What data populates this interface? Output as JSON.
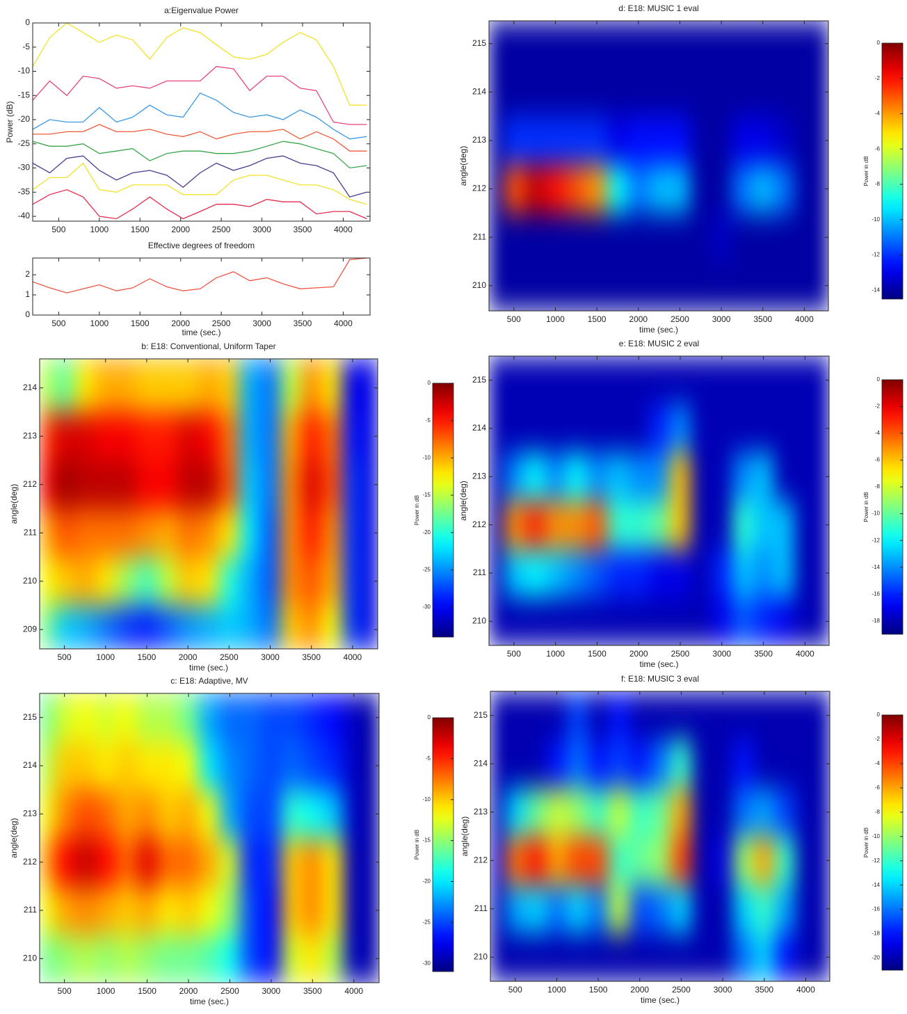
{
  "chart_data": [
    {
      "type": "line",
      "title": "a:Eigenvalue Power",
      "ylabel": "Power (dB)",
      "x": [
        180,
        390,
        600,
        800,
        1000,
        1210,
        1410,
        1620,
        1830,
        2030,
        2240,
        2440,
        2650,
        2850,
        3060,
        3260,
        3470,
        3670,
        3880,
        4080,
        4290
      ],
      "xlim": [
        180,
        4330
      ],
      "ylim": [
        -41,
        0
      ],
      "xticks": [
        500,
        1000,
        1500,
        2000,
        2500,
        3000,
        3500,
        4000
      ],
      "yticks": [
        0,
        -5,
        -10,
        -15,
        -20,
        -25,
        -30,
        -35,
        -40
      ],
      "series": [
        {
          "color": "#f2e22a",
          "values": [
            -9,
            -3,
            0,
            -2,
            -4,
            -2.5,
            -3.5,
            -7.5,
            -3,
            -1,
            -2,
            -4.5,
            -7,
            -7.5,
            -6.5,
            -4,
            -2,
            -3.5,
            -9,
            -17,
            -17
          ]
        },
        {
          "color": "#e8457a",
          "values": [
            -16,
            -12,
            -15,
            -11,
            -11.5,
            -13.5,
            -13,
            -13.5,
            -12,
            -12,
            -12,
            -9,
            -9.5,
            -14,
            -11,
            -11,
            -13.5,
            -14,
            -20.5,
            -21,
            -21
          ]
        },
        {
          "color": "#3a98e6",
          "values": [
            -22,
            -20,
            -20.5,
            -20.5,
            -17.5,
            -20.5,
            -19.5,
            -17,
            -19,
            -19.5,
            -14.5,
            -16,
            -18.5,
            -19.5,
            -19,
            -20,
            -18,
            -19.5,
            -22,
            -24,
            -23.5
          ]
        },
        {
          "color": "#f05a3a",
          "values": [
            -23,
            -23,
            -22.5,
            -22.5,
            -21,
            -22.5,
            -22.5,
            -22,
            -23,
            -23.5,
            -22.5,
            -24,
            -23,
            -22.5,
            -22.5,
            -22,
            -24,
            -22.5,
            -24,
            -26.5,
            -26.5
          ]
        },
        {
          "color": "#3aa64a",
          "values": [
            -24.5,
            -25.5,
            -25.5,
            -25,
            -27,
            -26.5,
            -26,
            -28.5,
            -27,
            -26.5,
            -26.5,
            -27,
            -27,
            -26.5,
            -25.5,
            -24.5,
            -25,
            -26,
            -27,
            -30,
            -29.5
          ]
        },
        {
          "color": "#4a3a90",
          "values": [
            -29,
            -31,
            -28,
            -27.5,
            -30.5,
            -32.5,
            -31,
            -30.5,
            -31.5,
            -34,
            -31,
            -29,
            -30.5,
            -29.5,
            -28,
            -27.5,
            -29,
            -29.5,
            -31,
            -36,
            -35
          ]
        },
        {
          "color": "#f2e22a",
          "values": [
            -34.5,
            -32,
            -32,
            -29,
            -34.5,
            -35,
            -33.5,
            -33.5,
            -33.5,
            -35.5,
            -35.5,
            -35.5,
            -32.5,
            -31.5,
            -31.5,
            -32.5,
            -33.5,
            -33.5,
            -34.5,
            -36.5,
            -37.5
          ]
        },
        {
          "color": "#e82a4a",
          "values": [
            -37.5,
            -35.5,
            -34.5,
            -36,
            -40,
            -40.5,
            -38.5,
            -36,
            -38.5,
            -40.5,
            -39,
            -37.5,
            -37.5,
            -38,
            -36.5,
            -37,
            -37,
            -39.5,
            -39,
            -39,
            -40.5
          ]
        }
      ]
    },
    {
      "type": "line",
      "title": "Effective degrees of freedom",
      "xlabel": "time (sec.)",
      "x": [
        180,
        390,
        600,
        800,
        1000,
        1210,
        1410,
        1620,
        1830,
        2030,
        2240,
        2440,
        2650,
        2850,
        3060,
        3260,
        3470,
        3670,
        3880,
        4080,
        4290
      ],
      "xlim": [
        180,
        4330
      ],
      "ylim": [
        0,
        2.83
      ],
      "xticks": [
        500,
        1000,
        1500,
        2000,
        2500,
        3000,
        3500,
        4000
      ],
      "yticks": [
        0,
        1,
        2
      ],
      "series": [
        {
          "color": "#ee5544",
          "values": [
            1.65,
            1.35,
            1.1,
            1.3,
            1.5,
            1.2,
            1.35,
            1.8,
            1.4,
            1.2,
            1.3,
            1.85,
            2.15,
            1.7,
            1.85,
            1.55,
            1.3,
            1.35,
            1.4,
            2.75,
            2.83
          ]
        }
      ]
    },
    {
      "type": "heatmap",
      "title": "b: E18: Conventional, Uniform Taper",
      "xlabel": "time (sec.)",
      "ylabel": "angle(deg)",
      "zlabel": "Power in dB",
      "colormap": "jet",
      "x": [
        250,
        500,
        750,
        1000,
        1250,
        1500,
        1750,
        2000,
        2250,
        2500,
        2750,
        3000,
        3250,
        3500,
        3750,
        4000,
        4250
      ],
      "y": [
        209,
        210,
        211,
        212,
        213,
        214
      ],
      "z": [
        [
          -17,
          -23,
          -24,
          -26,
          -28,
          -29,
          -27,
          -25,
          -24,
          -23,
          -24,
          -26,
          -11,
          -9,
          -13,
          -28,
          -31
        ],
        [
          -13,
          -11,
          -10,
          -12,
          -16,
          -19,
          -15,
          -11,
          -12,
          -20,
          -24,
          -27,
          -9,
          -7,
          -10,
          -28,
          -31
        ],
        [
          -10,
          -7,
          -8,
          -8,
          -8,
          -9,
          -10,
          -8,
          -9,
          -12,
          -22,
          -27,
          -9,
          -5,
          -9,
          -28,
          -31
        ],
        [
          -4,
          -1,
          -2,
          -2,
          -2,
          -4,
          -4,
          -2,
          -2,
          -7,
          -23,
          -26,
          -9,
          -3,
          -7,
          -28,
          -31
        ],
        [
          -6,
          -3,
          -3,
          -4,
          -4,
          -5,
          -5,
          -3,
          -4,
          -8,
          -24,
          -26,
          -10,
          -5,
          -8,
          -29,
          -31
        ],
        [
          -15,
          -18,
          -12,
          -10,
          -10,
          -11,
          -11,
          -11,
          -10,
          -11,
          -24,
          -26,
          -15,
          -9,
          -12,
          -30,
          -31
        ]
      ],
      "xlim": [
        200,
        4305
      ],
      "ylim": [
        208.6,
        214.6
      ],
      "xticks": [
        500,
        1000,
        1500,
        2000,
        2500,
        3000,
        3500,
        4000
      ],
      "yticks": [
        209,
        210,
        211,
        212,
        213,
        214
      ],
      "zlim": [
        -34,
        0
      ],
      "zticks": [
        0,
        -5,
        -10,
        -15,
        -20,
        -25,
        -30
      ]
    },
    {
      "type": "heatmap",
      "title": "c: E18: Adaptive, MV",
      "xlabel": "time (sec.)",
      "ylabel": "angle(deg)",
      "zlabel": "Power in dB",
      "colormap": "jet",
      "x": [
        250,
        500,
        750,
        1000,
        1250,
        1500,
        1750,
        2000,
        2250,
        2500,
        2750,
        3000,
        3250,
        3500,
        3750,
        4000,
        4250
      ],
      "y": [
        210,
        211,
        212,
        213,
        214,
        215
      ],
      "z": [
        [
          -16,
          -15,
          -14,
          -15,
          -14,
          -15,
          -16,
          -16,
          -17,
          -19,
          -25,
          -27,
          -13,
          -11,
          -14,
          -29,
          -30
        ],
        [
          -12,
          -9,
          -8,
          -9,
          -10,
          -9,
          -11,
          -10,
          -12,
          -15,
          -25,
          -27,
          -10,
          -8,
          -11,
          -29,
          -30
        ],
        [
          -9,
          -4,
          -2,
          -4,
          -7,
          -3,
          -7,
          -7,
          -9,
          -13,
          -26,
          -26,
          -10,
          -8,
          -11,
          -29,
          -30
        ],
        [
          -12,
          -8,
          -6,
          -7,
          -9,
          -8,
          -10,
          -9,
          -12,
          -22,
          -25,
          -25,
          -18,
          -19,
          -21,
          -29,
          -30
        ],
        [
          -14,
          -10,
          -10,
          -11,
          -10,
          -11,
          -11,
          -12,
          -20,
          -23,
          -24,
          -25,
          -24,
          -25,
          -26,
          -29,
          -30
        ],
        [
          -16,
          -13,
          -12,
          -13,
          -12,
          -14,
          -14,
          -16,
          -22,
          -24,
          -24,
          -25,
          -25,
          -26,
          -27,
          -29,
          -30
        ]
      ],
      "xlim": [
        200,
        4305
      ],
      "ylim": [
        209.5,
        215.5
      ],
      "xticks": [
        500,
        1000,
        1500,
        2000,
        2500,
        3000,
        3500,
        4000
      ],
      "yticks": [
        210,
        211,
        212,
        213,
        214,
        215
      ],
      "zlim": [
        -31,
        0
      ],
      "zticks": [
        0,
        -5,
        -10,
        -15,
        -20,
        -25,
        -30
      ]
    },
    {
      "type": "heatmap",
      "title": "d: E18: MUSIC 1 eval",
      "xlabel": "time (sec.)",
      "ylabel": "angle(deg)",
      "zlabel": "Power in dB",
      "colormap": "jet",
      "x": [
        250,
        500,
        750,
        1000,
        1250,
        1500,
        1750,
        2000,
        2250,
        2500,
        2750,
        3000,
        3250,
        3500,
        3750,
        4000,
        4250
      ],
      "y": [
        210,
        211,
        212,
        213,
        214,
        215
      ],
      "z": [
        [
          -14,
          -14,
          -14,
          -14,
          -14,
          -14,
          -14,
          -14,
          -14,
          -14,
          -14,
          -14,
          -14,
          -14,
          -14,
          -14,
          -14
        ],
        [
          -14,
          -14,
          -14,
          -14,
          -14,
          -14,
          -14,
          -14,
          -14,
          -14,
          -14,
          -13.5,
          -14,
          -14,
          -14,
          -14,
          -14
        ],
        [
          -14,
          -3,
          -1,
          -2,
          -3,
          -4,
          -9,
          -11,
          -10,
          -10,
          -14,
          -14,
          -11,
          -10,
          -11,
          -14,
          -14
        ],
        [
          -14,
          -12,
          -12,
          -12,
          -12,
          -12,
          -13,
          -12.5,
          -12.5,
          -12.5,
          -14,
          -14,
          -13,
          -13,
          -13.5,
          -14,
          -14
        ],
        [
          -14,
          -14,
          -14,
          -14,
          -14,
          -14,
          -14,
          -14,
          -14,
          -14,
          -14,
          -14,
          -14,
          -14,
          -14,
          -14,
          -14
        ],
        [
          -14,
          -14,
          -14,
          -14,
          -14,
          -14,
          -14,
          -14,
          -14,
          -14,
          -14,
          -14,
          -14,
          -14,
          -14,
          -14,
          -14
        ]
      ],
      "xlim": [
        200,
        4290
      ],
      "ylim": [
        209.48,
        215.47
      ],
      "xticks": [
        500,
        1000,
        1500,
        2000,
        2500,
        3000,
        3500,
        4000
      ],
      "yticks": [
        210,
        211,
        212,
        213,
        214,
        215
      ],
      "zlim": [
        -14.5,
        0
      ],
      "zticks": [
        0,
        -2,
        -4,
        -6,
        -8,
        -10,
        -12,
        -14
      ]
    },
    {
      "type": "heatmap",
      "title": "e: E18: MUSIC 2 eval",
      "xlabel": "time (sec.)",
      "ylabel": "angle(deg)",
      "zlabel": "Power in dB",
      "colormap": "jet",
      "x": [
        250,
        500,
        750,
        1000,
        1250,
        1500,
        1750,
        2000,
        2250,
        2500,
        2750,
        3000,
        3250,
        3500,
        3750,
        4000,
        4250
      ],
      "y": [
        210,
        211,
        212,
        213,
        214,
        215
      ],
      "z": [
        [
          -18,
          -18,
          -18,
          -18,
          -18,
          -18,
          -18,
          -18,
          -18,
          -18,
          -18,
          -17,
          -15,
          -16,
          -17,
          -18,
          -18
        ],
        [
          -18,
          -13,
          -12,
          -13,
          -14,
          -15,
          -16,
          -16,
          -17,
          -17,
          -18,
          -16,
          -13,
          -14,
          -13,
          -18,
          -18
        ],
        [
          -18,
          -5,
          -3,
          -5,
          -5,
          -4,
          -11,
          -11,
          -10,
          -6,
          -18,
          -18,
          -11,
          -13,
          -13,
          -18,
          -18
        ],
        [
          -18,
          -14,
          -12,
          -14,
          -12,
          -14,
          -13,
          -14,
          -14,
          -6,
          -18,
          -18,
          -14,
          -13,
          -18,
          -18,
          -18
        ],
        [
          -18,
          -18,
          -18,
          -18,
          -18,
          -18,
          -18,
          -18,
          -16,
          -14,
          -18,
          -18,
          -18,
          -18,
          -18,
          -18,
          -18
        ],
        [
          -18,
          -18,
          -18,
          -18,
          -18,
          -18,
          -18,
          -18,
          -18,
          -18,
          -18,
          -18,
          -18,
          -18,
          -18,
          -18,
          -18
        ]
      ],
      "xlim": [
        200,
        4290
      ],
      "ylim": [
        209.5,
        215.5
      ],
      "xticks": [
        500,
        1000,
        1500,
        2000,
        2500,
        3000,
        3500,
        4000
      ],
      "yticks": [
        210,
        211,
        212,
        213,
        214,
        215
      ],
      "zlim": [
        -19,
        0
      ],
      "zticks": [
        0,
        -2,
        -4,
        -6,
        -8,
        -10,
        -12,
        -14,
        -16,
        -18
      ]
    },
    {
      "type": "heatmap",
      "title": "f: E18: MUSIC 3 eval",
      "xlabel": "time (sec.)",
      "ylabel": "angle(deg)",
      "zlabel": "Power in dB",
      "colormap": "jet",
      "x": [
        250,
        500,
        750,
        1000,
        1250,
        1500,
        1750,
        2000,
        2250,
        2500,
        2750,
        3000,
        3250,
        3500,
        3750,
        4000,
        4250
      ],
      "y": [
        210,
        211,
        212,
        213,
        214,
        215
      ],
      "z": [
        [
          -20,
          -20,
          -20,
          -20,
          -20,
          -20,
          -20,
          -20,
          -20,
          -20,
          -20,
          -20,
          -16,
          -14,
          -18,
          -20,
          -20
        ],
        [
          -20,
          -15,
          -14,
          -16,
          -14,
          -16,
          -9,
          -17,
          -16,
          -14,
          -20,
          -20,
          -14,
          -12,
          -15,
          -20,
          -20
        ],
        [
          -19,
          -5,
          -3,
          -6,
          -4,
          -4,
          -12,
          -11,
          -10,
          -4,
          -20,
          -19,
          -10,
          -6,
          -12,
          -20,
          -20
        ],
        [
          -20,
          -14,
          -11,
          -9,
          -10,
          -12,
          -9,
          -12,
          -11,
          -6,
          -20,
          -20,
          -16,
          -15,
          -17,
          -20,
          -20
        ],
        [
          -20,
          -20,
          -20,
          -18,
          -16,
          -18,
          -17,
          -18,
          -16,
          -12,
          -20,
          -20,
          -18,
          -20,
          -20,
          -20,
          -20
        ],
        [
          -20,
          -20,
          -20,
          -20,
          -17,
          -20,
          -18,
          -20,
          -20,
          -20,
          -20,
          -20,
          -20,
          -20,
          -20,
          -20,
          -20
        ]
      ],
      "xlim": [
        200,
        4290
      ],
      "ylim": [
        209.5,
        215.5
      ],
      "xticks": [
        500,
        1000,
        1500,
        2000,
        2500,
        3000,
        3500,
        4000
      ],
      "yticks": [
        210,
        211,
        212,
        213,
        214,
        215
      ],
      "zlim": [
        -21,
        0
      ],
      "zticks": [
        0,
        -2,
        -4,
        -6,
        -8,
        -10,
        -12,
        -14,
        -16,
        -18,
        -20
      ]
    }
  ]
}
